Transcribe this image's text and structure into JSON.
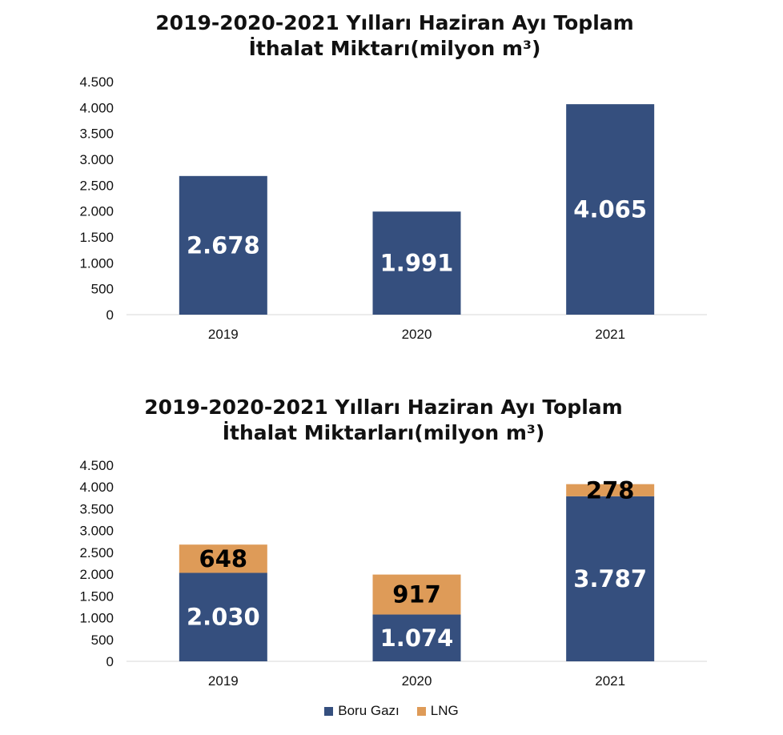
{
  "chart_data": [
    {
      "type": "bar",
      "title_lines": [
        "2019-2020-2021 Yılları Haziran Ayı Toplam",
        "İthalat Miktarı(milyon m³)"
      ],
      "categories": [
        "2019",
        "2020",
        "2021"
      ],
      "values": [
        2678,
        1991,
        4065
      ],
      "data_labels": [
        "2.678",
        "1.991",
        "4.065"
      ],
      "ylim": [
        0,
        4500
      ],
      "yticks": [
        0,
        500,
        1000,
        1500,
        2000,
        2500,
        3000,
        3500,
        4000,
        4500
      ],
      "ytick_labels": [
        "0",
        "500",
        "1.000",
        "1.500",
        "2.000",
        "2.500",
        "3.000",
        "3.500",
        "4.000",
        "4.500"
      ],
      "color": "#354f7e",
      "grid": false,
      "legend": false
    },
    {
      "type": "stacked-bar",
      "title_lines": [
        "2019-2020-2021 Yılları Haziran Ayı Toplam",
        "İthalat Miktarları(milyon m³)"
      ],
      "categories": [
        "2019",
        "2020",
        "2021"
      ],
      "series": [
        {
          "name": "Boru Gazı",
          "values": [
            2030,
            1074,
            3787
          ],
          "data_labels": [
            "2.030",
            "1.074",
            "3.787"
          ],
          "color": "#354f7e",
          "label_color": "#ffffff"
        },
        {
          "name": "LNG",
          "values": [
            648,
            917,
            278
          ],
          "data_labels": [
            "648",
            "917",
            "278"
          ],
          "color": "#de9b58",
          "label_color": "#000000"
        }
      ],
      "ylim": [
        0,
        4500
      ],
      "yticks": [
        0,
        500,
        1000,
        1500,
        2000,
        2500,
        3000,
        3500,
        4000,
        4500
      ],
      "ytick_labels": [
        "0",
        "500",
        "1.000",
        "1.500",
        "2.000",
        "2.500",
        "3.000",
        "3.500",
        "4.000",
        "4.500"
      ],
      "grid": false,
      "legend": "bottom"
    }
  ]
}
